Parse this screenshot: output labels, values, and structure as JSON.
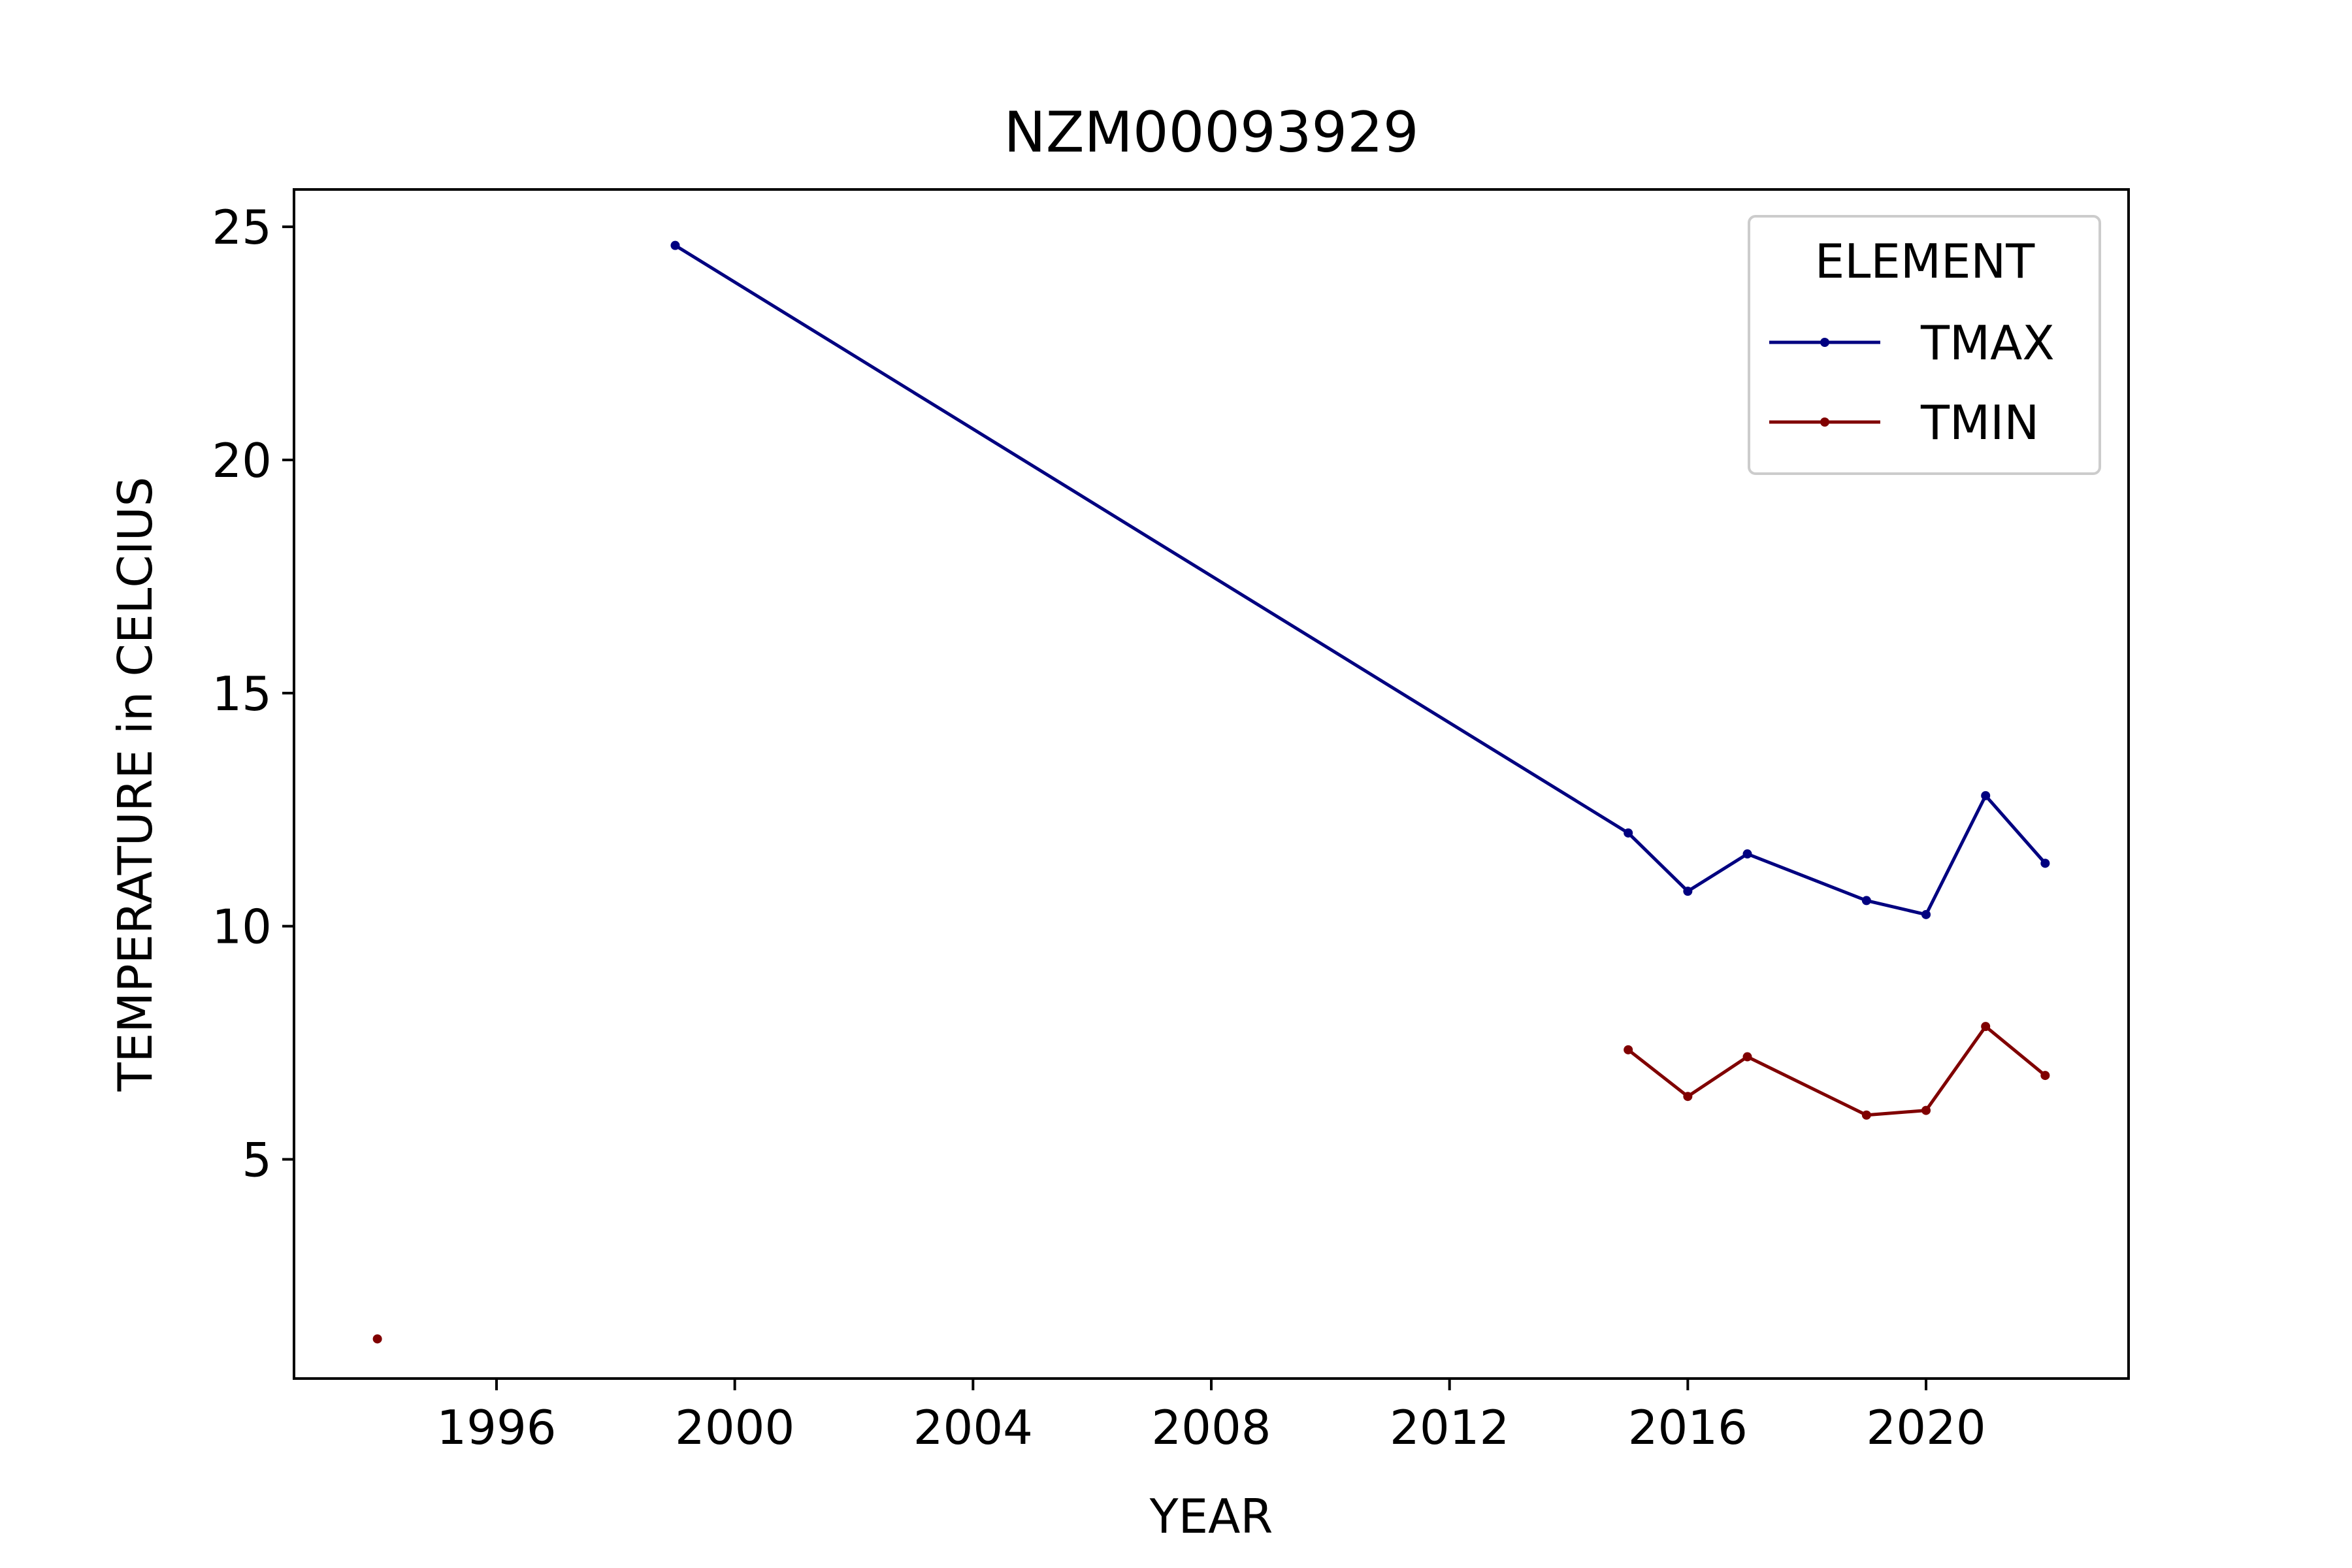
{
  "chart_data": {
    "type": "line",
    "title": "NZM00093929",
    "xlabel": "YEAR",
    "ylabel": "TEMPERATURE in CELCIUS",
    "xlim": [
      1992.6,
      2023.4
    ],
    "ylim": [
      0.3,
      25.8
    ],
    "xticks": [
      1996,
      2000,
      2004,
      2008,
      2012,
      2016,
      2020
    ],
    "yticks": [
      5,
      10,
      15,
      20,
      25
    ],
    "grid": false,
    "legend": {
      "title": "ELEMENT",
      "placement": "top-right"
    },
    "series": [
      {
        "name": "TMAX",
        "color": "#000080",
        "points": [
          {
            "x": 1999,
            "y": 24.6
          },
          {
            "x": 2015,
            "y": 12.0
          },
          {
            "x": 2016,
            "y": 10.75
          },
          {
            "x": 2017,
            "y": 11.55
          },
          {
            "x": 2019,
            "y": 10.55
          },
          {
            "x": 2020,
            "y": 10.25
          },
          {
            "x": 2021,
            "y": 12.8
          },
          {
            "x": 2022,
            "y": 11.35
          }
        ]
      },
      {
        "name": "TMIN",
        "color": "#800000",
        "points": [
          {
            "x": 1994,
            "y": 1.15,
            "isolated": true
          },
          {
            "x": 2015,
            "y": 7.35
          },
          {
            "x": 2016,
            "y": 6.35
          },
          {
            "x": 2017,
            "y": 7.2
          },
          {
            "x": 2019,
            "y": 5.95
          },
          {
            "x": 2020,
            "y": 6.05
          },
          {
            "x": 2021,
            "y": 7.85
          },
          {
            "x": 2022,
            "y": 6.8
          }
        ]
      }
    ]
  }
}
